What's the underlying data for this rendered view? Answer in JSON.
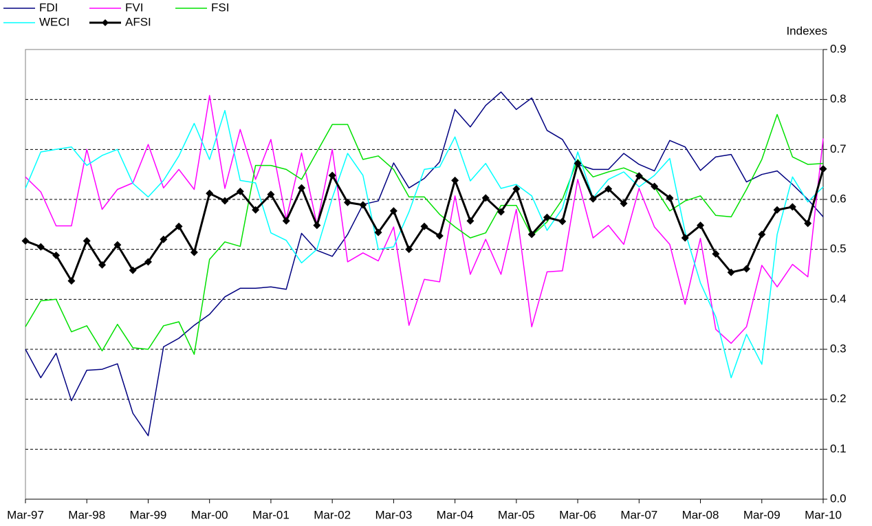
{
  "chart_data": {
    "type": "line",
    "y_label": "Indexes",
    "y_axis_position": "right",
    "legend": "top-left",
    "grid": true,
    "categories": [
      "Mar-97",
      null,
      null,
      null,
      "Mar-98",
      null,
      null,
      null,
      "Mar-99",
      null,
      null,
      null,
      "Mar-00",
      null,
      null,
      null,
      "Mar-01",
      null,
      null,
      null,
      "Mar-02",
      null,
      null,
      null,
      "Mar-03",
      null,
      null,
      null,
      "Mar-04",
      null,
      null,
      null,
      "Mar-05",
      null,
      null,
      null,
      "Mar-06",
      null,
      null,
      null,
      "Mar-07",
      null,
      null,
      null,
      "Mar-08",
      null,
      null,
      null,
      "Mar-09",
      null,
      null,
      null,
      "Mar-10"
    ],
    "ylim": [
      0,
      0.9
    ],
    "yticks": [
      {
        "value": 0,
        "label": "0.0"
      },
      0.1,
      0.2,
      0.3,
      0.4,
      0.5,
      0.6,
      0.7,
      0.8,
      0.9
    ],
    "series": [
      {
        "name": "FDI",
        "color": "#000080",
        "values": [
          0.3,
          0.243,
          0.292,
          0.197,
          0.258,
          0.26,
          0.271,
          0.172,
          0.127,
          0.305,
          0.322,
          0.348,
          0.37,
          0.405,
          0.422,
          0.422,
          0.425,
          0.42,
          0.532,
          0.498,
          0.486,
          0.53,
          0.59,
          0.597,
          0.673,
          0.623,
          0.642,
          0.675,
          0.78,
          0.745,
          0.788,
          0.815,
          0.78,
          0.803,
          0.738,
          0.72,
          0.67,
          0.66,
          0.66,
          0.692,
          0.67,
          0.657,
          0.718,
          0.705,
          0.658,
          0.685,
          0.69,
          0.635,
          0.65,
          0.657,
          0.63,
          0.6,
          0.565
        ]
      },
      {
        "name": "FVI",
        "color": "#ff00ff",
        "values": [
          0.645,
          0.615,
          0.547,
          0.547,
          0.7,
          0.58,
          0.62,
          0.633,
          0.71,
          0.623,
          0.66,
          0.62,
          0.808,
          0.622,
          0.74,
          0.64,
          0.72,
          0.56,
          0.693,
          0.55,
          0.7,
          0.475,
          0.493,
          0.477,
          0.545,
          0.348,
          0.44,
          0.435,
          0.607,
          0.45,
          0.52,
          0.45,
          0.58,
          0.345,
          0.455,
          0.457,
          0.64,
          0.523,
          0.548,
          0.51,
          0.622,
          0.545,
          0.51,
          0.39,
          0.522,
          0.34,
          0.312,
          0.345,
          0.468,
          0.425,
          0.47,
          0.445,
          0.722
        ]
      },
      {
        "name": "FSI",
        "color": "#00e000",
        "values": [
          0.345,
          0.397,
          0.4,
          0.335,
          0.347,
          0.297,
          0.35,
          0.303,
          0.3,
          0.347,
          0.355,
          0.29,
          0.48,
          0.515,
          0.506,
          0.668,
          0.668,
          0.66,
          0.64,
          0.695,
          0.75,
          0.75,
          0.68,
          0.687,
          0.66,
          0.605,
          0.605,
          0.57,
          0.545,
          0.523,
          0.533,
          0.588,
          0.588,
          0.527,
          0.555,
          0.6,
          0.68,
          0.645,
          0.655,
          0.663,
          0.65,
          0.625,
          0.577,
          0.597,
          0.607,
          0.568,
          0.565,
          0.62,
          0.68,
          0.77,
          0.685,
          0.67,
          0.672
        ]
      },
      {
        "name": "WECI",
        "color": "#00ffff",
        "values": [
          0.622,
          0.695,
          0.7,
          0.705,
          0.668,
          0.688,
          0.7,
          0.632,
          0.605,
          0.638,
          0.687,
          0.752,
          0.68,
          0.778,
          0.638,
          0.633,
          0.533,
          0.518,
          0.473,
          0.5,
          0.603,
          0.692,
          0.648,
          0.5,
          0.505,
          0.575,
          0.66,
          0.665,
          0.725,
          0.637,
          0.672,
          0.622,
          0.63,
          0.607,
          0.538,
          0.582,
          0.695,
          0.603,
          0.64,
          0.655,
          0.625,
          0.648,
          0.682,
          0.535,
          0.433,
          0.365,
          0.243,
          0.33,
          0.27,
          0.53,
          0.645,
          0.595,
          0.625
        ]
      },
      {
        "name": "AFSI",
        "color": "#000000",
        "marker": "diamond",
        "values": [
          0.517,
          0.505,
          0.488,
          0.437,
          0.517,
          0.469,
          0.509,
          0.458,
          0.475,
          0.52,
          0.546,
          0.494,
          0.612,
          0.597,
          0.616,
          0.579,
          0.61,
          0.557,
          0.623,
          0.548,
          0.648,
          0.594,
          0.589,
          0.534,
          0.577,
          0.5,
          0.546,
          0.527,
          0.638,
          0.557,
          0.603,
          0.575,
          0.621,
          0.53,
          0.564,
          0.556,
          0.672,
          0.601,
          0.621,
          0.592,
          0.647,
          0.626,
          0.603,
          0.523,
          0.548,
          0.491,
          0.454,
          0.461,
          0.53,
          0.579,
          0.585,
          0.552,
          0.661
        ]
      }
    ]
  }
}
